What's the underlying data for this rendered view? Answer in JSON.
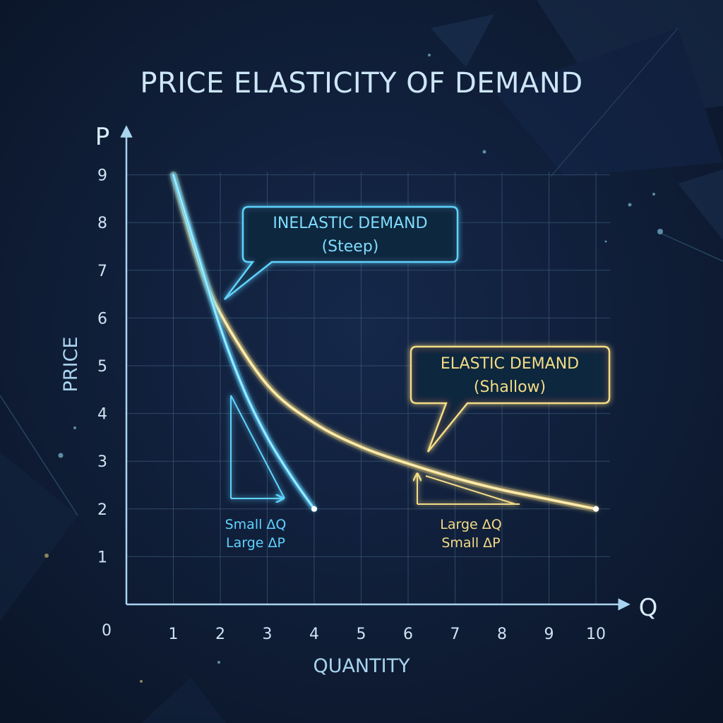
{
  "chart_data": {
    "type": "line",
    "title": "PRICE ELASTICITY OF DEMAND",
    "xlabel": "QUANTITY",
    "ylabel": "PRICE",
    "x_axis_letter": "Q",
    "y_axis_letter": "P",
    "origin_label": "0",
    "xlim": [
      0,
      10
    ],
    "ylim": [
      0,
      9
    ],
    "x_ticks": [
      1,
      2,
      3,
      4,
      5,
      6,
      7,
      8,
      9,
      10
    ],
    "y_ticks": [
      1,
      2,
      3,
      4,
      5,
      6,
      7,
      8,
      9
    ],
    "grid": true,
    "series": [
      {
        "name": "INELASTIC DEMAND",
        "color": "#5fd3ff",
        "x": [
          1,
          1.5,
          2,
          2.5,
          3,
          3.5,
          4
        ],
        "y": [
          9,
          7.4,
          5.8,
          4.5,
          3.5,
          2.7,
          2
        ]
      },
      {
        "name": "ELASTIC DEMAND",
        "color": "#f4dc86",
        "x": [
          1,
          1.5,
          2,
          3,
          4,
          5,
          6,
          7,
          8,
          9,
          10
        ],
        "y": [
          9,
          7.3,
          6.1,
          4.6,
          3.8,
          3.3,
          2.95,
          2.65,
          2.4,
          2.2,
          2
        ]
      }
    ],
    "annotations": [
      {
        "series": "INELASTIC DEMAND",
        "line1": "INELASTIC DEMAND",
        "line2": "(Steep)",
        "note1": "Small ΔQ",
        "note2": "Large ΔP",
        "color": "#5fd3ff"
      },
      {
        "series": "ELASTIC DEMAND",
        "line1": "ELASTIC DEMAND",
        "line2": "(Shallow)",
        "note1": "Large ΔQ",
        "note2": "Small ΔP",
        "color": "#f4dc86"
      }
    ]
  },
  "colors": {
    "background": "#0e1a30",
    "grid": "#3a5a7a",
    "axis": "#a9d4ef",
    "inelastic": "#5fd3ff",
    "elastic": "#f4dc86"
  }
}
